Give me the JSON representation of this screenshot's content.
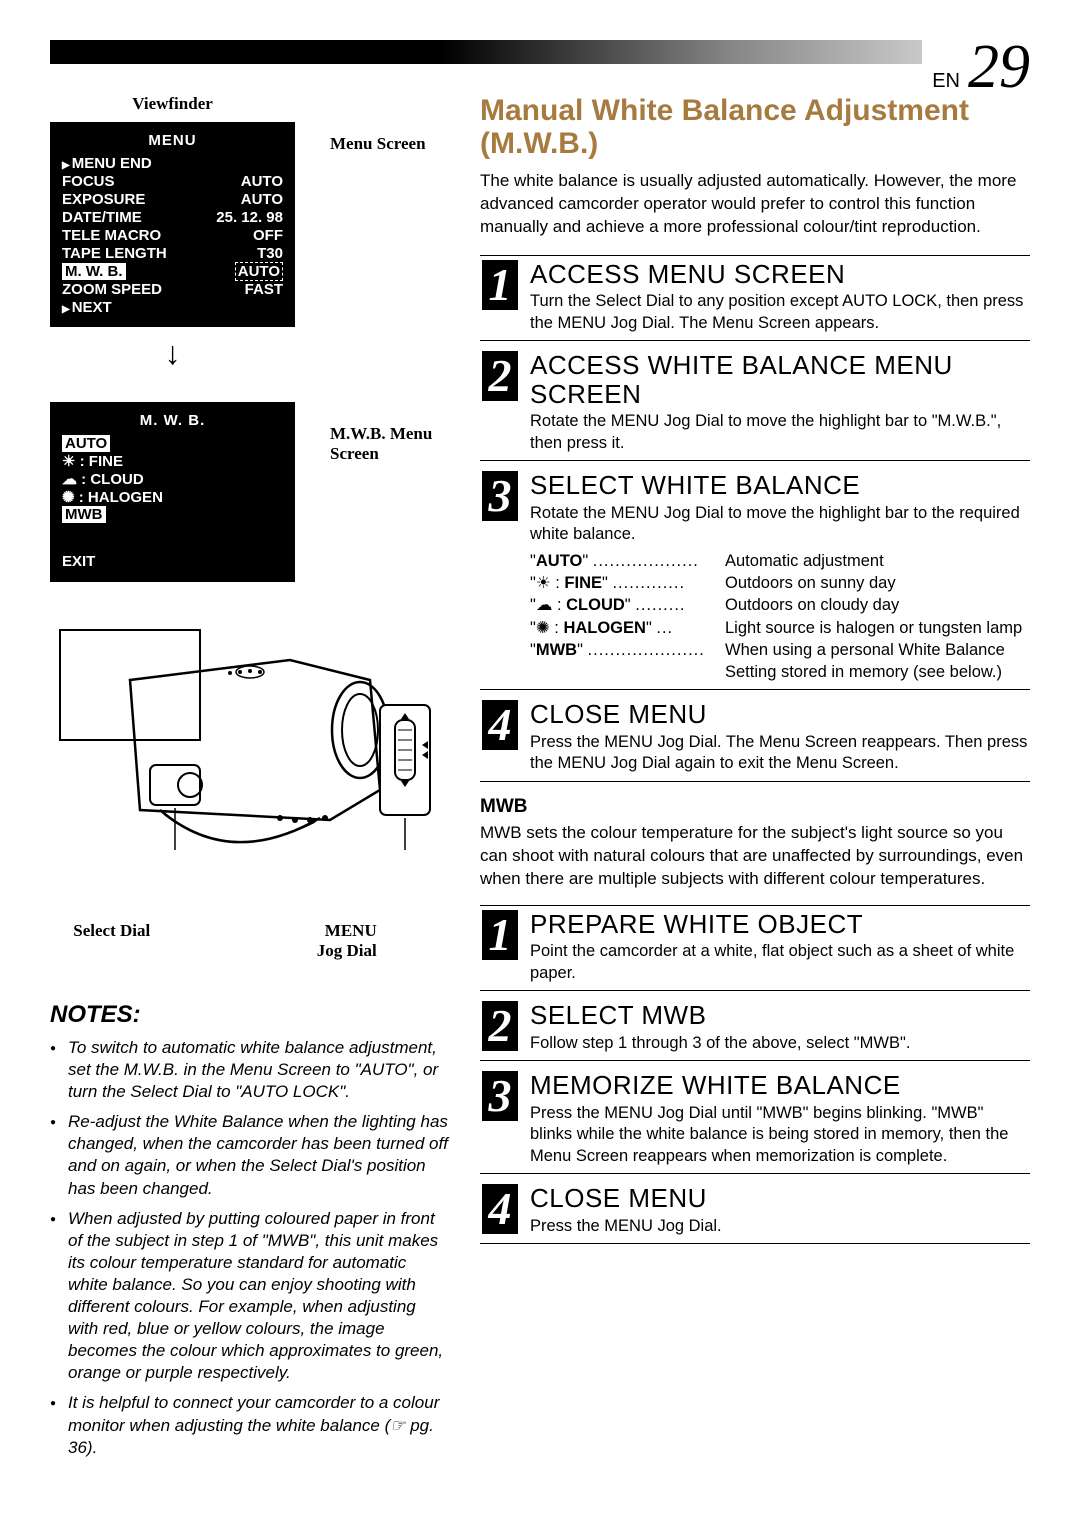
{
  "header": {
    "en_label": "EN",
    "page_number": "29"
  },
  "left": {
    "viewfinder_label": "Viewfinder",
    "menu_screen_label": "Menu Screen",
    "mwb_menu_label": "M.W.B. Menu Screen",
    "lcd1": {
      "title": "MENU",
      "rows": [
        {
          "l": "MENU END",
          "r": "",
          "arrow": true
        },
        {
          "l": "FOCUS",
          "r": "AUTO"
        },
        {
          "l": "EXPOSURE",
          "r": "AUTO"
        },
        {
          "l": "DATE/TIME",
          "r": "25. 12. 98"
        },
        {
          "l": "TELE MACRO",
          "r": "OFF"
        },
        {
          "l": "TAPE LENGTH",
          "r": "T30"
        },
        {
          "l": "M. W. B.",
          "r": "AUTO",
          "hl": true,
          "dashed": true
        },
        {
          "l": "ZOOM SPEED",
          "r": "FAST"
        },
        {
          "l": "NEXT",
          "r": "",
          "arrow": true
        }
      ]
    },
    "lcd2": {
      "title": "M. W. B.",
      "rows": [
        {
          "l": "AUTO",
          "hl_l": true
        },
        {
          "l": "☀ : FINE"
        },
        {
          "l": "☁ : CLOUD"
        },
        {
          "l": "✺ : HALOGEN"
        },
        {
          "l": "MWB",
          "hl_l": true
        }
      ],
      "exit": "EXIT"
    },
    "select_dial_label": "Select Dial",
    "jog_dial_label_1": "MENU",
    "jog_dial_label_2": "Jog Dial"
  },
  "right": {
    "title": "Manual White Balance Adjustment (M.W.B.)",
    "intro": "The white balance is usually adjusted automatically. However, the more advanced camcorder operator would prefer to control this function manually and achieve a more professional colour/tint reproduction.",
    "steps1": [
      {
        "n": "1",
        "h": "ACCESS MENU SCREEN",
        "b": "Turn the Select Dial to any position except AUTO LOCK, then press the MENU Jog Dial. The Menu Screen appears."
      },
      {
        "n": "2",
        "h": "ACCESS WHITE BALANCE MENU SCREEN",
        "b": "Rotate the MENU Jog Dial to move the highlight bar to \"M.W.B.\", then press it."
      },
      {
        "n": "3",
        "h": "SELECT WHITE BALANCE",
        "b": "Rotate the MENU Jog Dial to move the highlight bar to the required white balance."
      },
      {
        "n": "4",
        "h": "CLOSE MENU",
        "b": "Press the MENU Jog Dial. The Menu Screen reappears. Then press the MENU Jog Dial again to exit the Menu Screen."
      }
    ],
    "wb_table": [
      {
        "k": "\"AUTO\"",
        "dots": "...................",
        "v": "Automatic adjustment",
        "icon": ""
      },
      {
        "k": ": FINE\"",
        "dots": ".............",
        "v": "Outdoors on sunny day",
        "icon": "☀",
        "prefix": "\""
      },
      {
        "k": ": CLOUD\"",
        "dots": ".........",
        "v": "Outdoors on cloudy day",
        "icon": "☁",
        "prefix": "\""
      },
      {
        "k": ": HALOGEN\"",
        "dots": "...",
        "v": "Light source is halogen or tungsten lamp",
        "icon": "✺",
        "prefix": "\""
      },
      {
        "k": "\"MWB\"",
        "dots": ".....................",
        "v": "When using a personal White Balance Setting stored in memory (see below.)",
        "icon": ""
      }
    ],
    "mwb_heading": "MWB",
    "mwb_body": "MWB sets the colour temperature for the subject's light source so you can shoot with natural colours that are unaffected by surroundings, even when there are multiple subjects with different colour temperatures.",
    "steps2": [
      {
        "n": "1",
        "h": "PREPARE WHITE OBJECT",
        "b": "Point the camcorder at a white, flat object such as a sheet of white paper."
      },
      {
        "n": "2",
        "h": "SELECT MWB",
        "b": "Follow step 1 through 3 of the above, select \"MWB\"."
      },
      {
        "n": "3",
        "h": "MEMORIZE WHITE BALANCE",
        "b": "Press the MENU Jog Dial until \"MWB\" begins blinking. \"MWB\" blinks while the white balance is being stored in memory, then the Menu Screen reappears when memorization is complete."
      },
      {
        "n": "4",
        "h": "CLOSE MENU",
        "b": "Press the MENU Jog Dial."
      }
    ]
  },
  "notes": {
    "heading": "NOTES:",
    "items": [
      "To switch to automatic white balance adjustment, set the M.W.B. in the Menu Screen to \"AUTO\", or turn the Select Dial to \"AUTO LOCK\".",
      "Re-adjust the White Balance when the lighting has changed, when the camcorder has been turned off and on again, or when the Select Dial's position has been changed.",
      "When adjusted by putting coloured paper in front of the subject in step 1 of \"MWB\", this unit makes its colour temperature standard for automatic white balance. So you can enjoy shooting with different colours. For example, when adjusting with red, blue or yellow colours, the image becomes the colour which approximates to green, orange or purple respectively.",
      "It is helpful to connect your camcorder to a colour monitor when adjusting the white balance (☞ pg. 36)."
    ]
  }
}
